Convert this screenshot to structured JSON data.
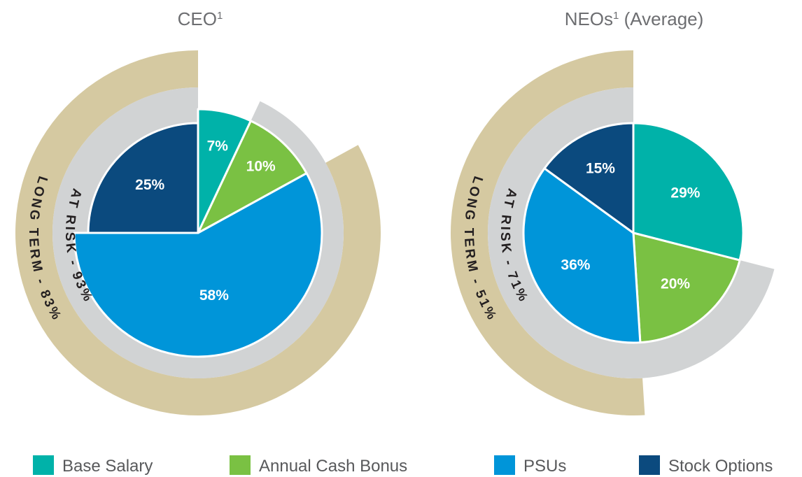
{
  "chart_data": [
    {
      "type": "pie",
      "title": "CEO",
      "title_sup": "1",
      "categories": [
        "Base Salary",
        "Annual Cash Bonus",
        "PSUs",
        "Stock Options"
      ],
      "values": [
        7,
        10,
        58,
        25
      ],
      "labels": [
        "7%",
        "10%",
        "58%",
        "25%"
      ],
      "rings": [
        {
          "name": "AT RISK",
          "value": 93,
          "label": "AT RISK - 93%"
        },
        {
          "name": "LONG TERM",
          "value": 83,
          "label": "LONG TERM - 83%"
        }
      ]
    },
    {
      "type": "pie",
      "title": "NEOs",
      "title_sup": "1",
      "title_suffix": " (Average)",
      "categories": [
        "Base Salary",
        "Annual Cash Bonus",
        "PSUs",
        "Stock Options"
      ],
      "values": [
        29,
        20,
        36,
        15
      ],
      "labels": [
        "29%",
        "20%",
        "36%",
        "15%"
      ],
      "rings": [
        {
          "name": "AT RISK",
          "value": 71,
          "label": "AT RISK - 71%"
        },
        {
          "name": "LONG TERM",
          "value": 51,
          "label": "LONG TERM - 51%"
        }
      ]
    }
  ],
  "colors": {
    "Base Salary": "#00b2a9",
    "Annual Cash Bonus": "#7ac143",
    "PSUs": "#0095d9",
    "Stock Options": "#0b4a7e",
    "at_risk_ring": "#d1d3d4",
    "long_term_ring": "#d5c9a1"
  },
  "legend": [
    "Base Salary",
    "Annual Cash Bonus",
    "PSUs",
    "Stock Options"
  ]
}
